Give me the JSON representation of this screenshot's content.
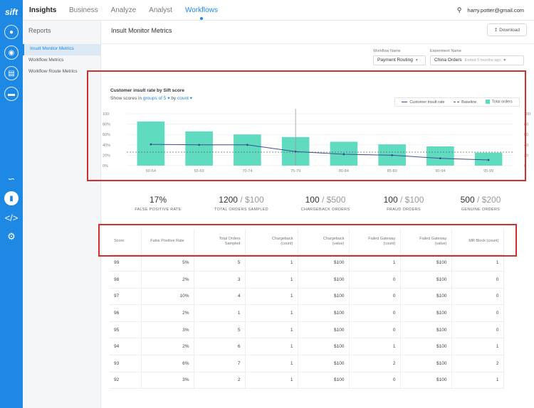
{
  "app": {
    "logo": "sift",
    "brand": "Insights",
    "nav": [
      "Business",
      "Analyze",
      "Analyst",
      "Workflows"
    ],
    "active_nav": "Workflows",
    "user_email": "harry.potter@gmail.com"
  },
  "rail_icons": [
    "user-icon",
    "location-icon",
    "document-icon",
    "card-icon",
    "network-icon",
    "chart-icon",
    "code-icon",
    "gear-icon"
  ],
  "sidebar": {
    "title": "Reports",
    "items": [
      "Insult Monitor Metrics",
      "Workflow Metrics",
      "Workflow Route Metrics"
    ]
  },
  "main": {
    "title": "Insult Monitor Metrics",
    "download_label": "Download",
    "workflow_name_label": "Workflow Name",
    "workflow_name_value": "Payment Routing",
    "experiment_name_label": "Experiment Name",
    "experiment_name_value": "China Orders",
    "experiment_name_placeholder": "Ended 5 months ago"
  },
  "chart_data": {
    "type": "bar",
    "title": "Customer insult rate by Sift score",
    "controls": {
      "prefix": "Show scores in",
      "groups_label": "groups of 5",
      "by_label": "by",
      "count_label": "count"
    },
    "legend": [
      "Customer insult rate",
      "Baseline",
      "Total orders"
    ],
    "categories": [
      "60-64",
      "65-69",
      "70-74",
      "75-79",
      "80-84",
      "85-89",
      "90-94",
      "95-99"
    ],
    "series": [
      {
        "name": "Total orders",
        "values": [
          85,
          66,
          60,
          55,
          46,
          41,
          37,
          25
        ]
      },
      {
        "name": "Customer insult rate",
        "values": [
          41,
          40,
          40,
          27,
          22,
          20,
          14,
          11
        ]
      },
      {
        "name": "Baseline",
        "values": [
          26,
          26,
          26,
          26,
          26,
          26,
          26,
          26
        ]
      }
    ],
    "left_ticks": [
      "100",
      "80%",
      "60%",
      "40%",
      "20%",
      "0%"
    ],
    "right_ticks": [
      "100",
      "80",
      "60",
      "40",
      "20",
      "0"
    ],
    "ylim": [
      0,
      100
    ],
    "colors": {
      "bars": "#5fdbc0",
      "line": "#3f4d8c",
      "baseline": "#666666"
    }
  },
  "stats": [
    {
      "value": "17%",
      "total": "",
      "label": "FALSE POSITIVE RATE"
    },
    {
      "value": "1200",
      "total": "$100",
      "label": "TOTAL ORDERS SAMPLED"
    },
    {
      "value": "100",
      "total": "$500",
      "label": "CHARGEBACK ORDERS"
    },
    {
      "value": "100",
      "total": "$100",
      "label": "FRAUD ORDERS"
    },
    {
      "value": "500",
      "total": "$200",
      "label": "GENUINE ORDERS"
    }
  ],
  "table": {
    "headers": [
      "Score",
      "False Positive Rate",
      "Total Orders\nSampled",
      "Chargeback\n(count)",
      "Chargeback\n(value)",
      "Failed Gateway\n(count)",
      "Failed Gateway\n(value)",
      "MR Block (count)"
    ],
    "rows": [
      [
        "99",
        "5%",
        "5",
        "1",
        "$100",
        "1",
        "$100",
        "1"
      ],
      [
        "98",
        "2%",
        "3",
        "1",
        "$100",
        "0",
        "$100",
        "0"
      ],
      [
        "97",
        "10%",
        "4",
        "1",
        "$100",
        "0",
        "$100",
        "0"
      ],
      [
        "96",
        "2%",
        "1",
        "1",
        "$100",
        "0",
        "$100",
        "0"
      ],
      [
        "95",
        "3%",
        "5",
        "1",
        "$100",
        "0",
        "$100",
        "0"
      ],
      [
        "94",
        "2%",
        "6",
        "1",
        "$100",
        "1",
        "$100",
        "1"
      ],
      [
        "93",
        "6%",
        "7",
        "1",
        "$100",
        "2",
        "$100",
        "2"
      ],
      [
        "92",
        "3%",
        "2",
        "1",
        "$100",
        "0",
        "$100",
        "1"
      ]
    ]
  }
}
